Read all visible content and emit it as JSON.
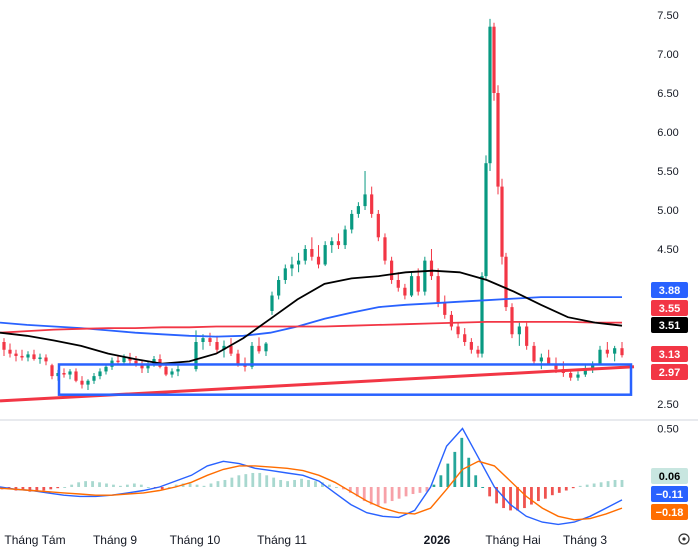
{
  "chart_data": {
    "type": "candlestick",
    "price_axis": {
      "ticks": [
        "7.50",
        "7.00",
        "6.50",
        "6.00",
        "5.50",
        "5.00",
        "4.50",
        "2.50"
      ],
      "tick_values": [
        7.5,
        7.0,
        6.5,
        6.0,
        5.5,
        5.0,
        4.5,
        2.5
      ]
    },
    "price_badges": [
      {
        "text": "3.88",
        "value": 3.88,
        "color": "#2962ff",
        "text_color": "#ffffff"
      },
      {
        "text": "3.55",
        "value": 3.55,
        "color": "#f23645",
        "text_color": "#ffffff"
      },
      {
        "text": "3.51",
        "value": 3.51,
        "color": "#000000",
        "text_color": "#ffffff"
      },
      {
        "text": "3.13",
        "value": 3.13,
        "color": "#f23645",
        "text_color": "#ffffff"
      },
      {
        "text": "2.97",
        "value": 2.97,
        "color": "#f23645",
        "text_color": "#ffffff"
      }
    ],
    "x_labels": [
      "Tháng Tám",
      "Tháng 9",
      "Tháng 10",
      "Tháng 11",
      "2026",
      "Tháng Hai",
      "Tháng 3"
    ],
    "candles_ohlc": [
      [
        3.3,
        3.35,
        3.12,
        3.2
      ],
      [
        3.2,
        3.28,
        3.1,
        3.15
      ],
      [
        3.15,
        3.2,
        3.05,
        3.12
      ],
      [
        3.12,
        3.2,
        3.06,
        3.1
      ],
      [
        3.1,
        3.18,
        3.05,
        3.14
      ],
      [
        3.14,
        3.2,
        3.06,
        3.08
      ],
      [
        3.08,
        3.15,
        3.02,
        3.1
      ],
      [
        3.1,
        3.14,
        3.0,
        3.05
      ],
      [
        3.0,
        3.02,
        2.82,
        2.86
      ],
      [
        2.86,
        2.94,
        2.8,
        2.9
      ],
      [
        2.9,
        2.96,
        2.84,
        2.88
      ],
      [
        2.88,
        2.95,
        2.82,
        2.92
      ],
      [
        2.92,
        2.96,
        2.78,
        2.8
      ],
      [
        2.8,
        2.86,
        2.7,
        2.75
      ],
      [
        2.75,
        2.82,
        2.68,
        2.8
      ],
      [
        2.8,
        2.9,
        2.76,
        2.86
      ],
      [
        2.86,
        2.96,
        2.82,
        2.92
      ],
      [
        2.92,
        3.02,
        2.88,
        2.98
      ],
      [
        2.98,
        3.1,
        2.94,
        3.06
      ],
      [
        3.06,
        3.12,
        3.0,
        3.04
      ],
      [
        3.04,
        3.14,
        3.0,
        3.1
      ],
      [
        3.1,
        3.16,
        3.02,
        3.06
      ],
      [
        3.06,
        3.12,
        2.98,
        3.0
      ],
      [
        3.0,
        3.06,
        2.9,
        2.96
      ],
      [
        2.96,
        3.04,
        2.9,
        3.02
      ],
      [
        3.02,
        3.12,
        2.98,
        3.08
      ],
      [
        3.08,
        3.14,
        2.96,
        2.98
      ],
      [
        2.98,
        3.02,
        2.86,
        2.88
      ],
      [
        2.88,
        2.96,
        2.84,
        2.92
      ],
      [
        2.92,
        3.0,
        2.86,
        2.95
      ],
      [
        2.95,
        3.45,
        2.92,
        3.3
      ],
      [
        3.3,
        3.4,
        3.2,
        3.35
      ],
      [
        3.35,
        3.42,
        3.25,
        3.3
      ],
      [
        3.3,
        3.38,
        3.15,
        3.2
      ],
      [
        3.2,
        3.32,
        3.1,
        3.25
      ],
      [
        3.25,
        3.35,
        3.12,
        3.15
      ],
      [
        3.15,
        3.2,
        2.98,
        3.02
      ],
      [
        3.02,
        3.1,
        2.92,
        2.98
      ],
      [
        2.98,
        3.3,
        2.95,
        3.25
      ],
      [
        3.25,
        3.36,
        3.15,
        3.18
      ],
      [
        3.18,
        3.3,
        3.12,
        3.28
      ],
      [
        3.7,
        3.95,
        3.65,
        3.9
      ],
      [
        3.9,
        4.15,
        3.85,
        4.1
      ],
      [
        4.1,
        4.3,
        4.05,
        4.25
      ],
      [
        4.25,
        4.4,
        4.15,
        4.3
      ],
      [
        4.3,
        4.45,
        4.2,
        4.35
      ],
      [
        4.35,
        4.55,
        4.3,
        4.5
      ],
      [
        4.5,
        4.65,
        4.35,
        4.4
      ],
      [
        4.4,
        4.55,
        4.25,
        4.3
      ],
      [
        4.3,
        4.6,
        4.28,
        4.55
      ],
      [
        4.55,
        4.65,
        4.45,
        4.6
      ],
      [
        4.6,
        4.7,
        4.5,
        4.55
      ],
      [
        4.55,
        4.8,
        4.5,
        4.75
      ],
      [
        4.75,
        5.0,
        4.7,
        4.95
      ],
      [
        4.95,
        5.1,
        4.9,
        5.05
      ],
      [
        5.05,
        5.5,
        5.0,
        5.2
      ],
      [
        5.2,
        5.3,
        4.9,
        4.95
      ],
      [
        4.95,
        5.0,
        4.6,
        4.65
      ],
      [
        4.65,
        4.7,
        4.3,
        4.35
      ],
      [
        4.35,
        4.4,
        4.05,
        4.1
      ],
      [
        4.1,
        4.2,
        3.95,
        4.0
      ],
      [
        4.0,
        4.05,
        3.85,
        3.9
      ],
      [
        3.9,
        4.2,
        3.88,
        4.15
      ],
      [
        4.15,
        4.25,
        3.9,
        3.95
      ],
      [
        3.95,
        4.4,
        3.9,
        4.35
      ],
      [
        4.35,
        4.5,
        4.1,
        4.15
      ],
      [
        4.15,
        4.25,
        3.75,
        3.8
      ],
      [
        3.8,
        3.9,
        3.6,
        3.65
      ],
      [
        3.65,
        3.7,
        3.45,
        3.5
      ],
      [
        3.5,
        3.55,
        3.35,
        3.4
      ],
      [
        3.4,
        3.48,
        3.25,
        3.3
      ],
      [
        3.3,
        3.35,
        3.15,
        3.2
      ],
      [
        3.2,
        3.25,
        3.1,
        3.15
      ],
      [
        3.15,
        4.2,
        3.1,
        4.15
      ],
      [
        4.15,
        5.7,
        4.1,
        5.6
      ],
      [
        5.6,
        7.45,
        5.5,
        7.35
      ],
      [
        7.35,
        7.4,
        6.4,
        6.5
      ],
      [
        6.5,
        6.6,
        5.2,
        5.3
      ],
      [
        5.3,
        5.4,
        4.3,
        4.4
      ],
      [
        4.4,
        4.45,
        3.7,
        3.75
      ],
      [
        3.75,
        3.8,
        3.35,
        3.4
      ],
      [
        3.4,
        3.55,
        3.25,
        3.5
      ],
      [
        3.5,
        3.55,
        3.2,
        3.25
      ],
      [
        3.25,
        3.3,
        3.0,
        3.05
      ],
      [
        3.05,
        3.15,
        2.95,
        3.1
      ],
      [
        3.1,
        3.2,
        3.0,
        3.02
      ],
      [
        3.02,
        3.1,
        2.9,
        2.95
      ],
      [
        2.95,
        3.05,
        2.85,
        2.9
      ],
      [
        2.9,
        2.95,
        2.8,
        2.84
      ],
      [
        2.84,
        2.92,
        2.8,
        2.88
      ],
      [
        2.88,
        3.0,
        2.85,
        2.96
      ],
      [
        2.96,
        3.05,
        2.9,
        3.02
      ],
      [
        3.02,
        3.25,
        3.0,
        3.2
      ],
      [
        3.2,
        3.3,
        3.1,
        3.15
      ],
      [
        3.15,
        3.25,
        3.05,
        3.22
      ],
      [
        3.22,
        3.3,
        3.1,
        3.13
      ]
    ],
    "ma_lines": [
      {
        "color": "#2962ff",
        "values": [
          3.55,
          3.52,
          3.5,
          3.48,
          3.45,
          3.42,
          3.4,
          3.38,
          3.37,
          3.38,
          3.42,
          3.5,
          3.6,
          3.68,
          3.75,
          3.78,
          3.8,
          3.82,
          3.84,
          3.86,
          3.88,
          3.88,
          3.88,
          3.88
        ]
      },
      {
        "color": "#f23645",
        "values": [
          3.42,
          3.44,
          3.46,
          3.47,
          3.48,
          3.48,
          3.49,
          3.49,
          3.5,
          3.5,
          3.5,
          3.5,
          3.5,
          3.51,
          3.52,
          3.53,
          3.54,
          3.55,
          3.56,
          3.56,
          3.56,
          3.56,
          3.55,
          3.55
        ]
      },
      {
        "color": "#000000",
        "values": [
          3.42,
          3.38,
          3.32,
          3.25,
          3.15,
          3.08,
          3.02,
          3.05,
          3.15,
          3.35,
          3.6,
          3.85,
          4.05,
          4.12,
          4.15,
          4.2,
          4.22,
          4.2,
          4.1,
          3.95,
          3.78,
          3.62,
          3.55,
          3.51
        ]
      }
    ],
    "trendline": {
      "from": 2.54,
      "to": 2.98,
      "color": "#f23645"
    },
    "support_box": {
      "low": 2.62,
      "high": 3.01,
      "color": "#2962ff"
    },
    "macd": {
      "ticks": [
        "0.50"
      ],
      "badges": [
        {
          "text": "0.06",
          "value": 0.06,
          "color": "#c8e6e0",
          "text_color": "#000000"
        },
        {
          "text": "−0.11",
          "value": -0.11,
          "color": "#2962ff",
          "text_color": "#ffffff"
        },
        {
          "text": "−0.18",
          "value": -0.18,
          "color": "#ff6d00",
          "text_color": "#ffffff"
        }
      ],
      "histogram": [
        -0.02,
        -0.02,
        -0.03,
        -0.03,
        -0.04,
        -0.04,
        -0.03,
        -0.02,
        -0.01,
        0.0,
        0.02,
        0.04,
        0.05,
        0.05,
        0.04,
        0.03,
        0.02,
        0.01,
        0.02,
        0.03,
        0.02,
        0.0,
        -0.01,
        -0.02,
        0.0,
        0.02,
        0.03,
        0.03,
        0.02,
        0.01,
        0.03,
        0.05,
        0.06,
        0.08,
        0.1,
        0.11,
        0.12,
        0.12,
        0.1,
        0.08,
        0.06,
        0.05,
        0.06,
        0.07,
        0.06,
        0.05,
        0.04,
        0.02,
        0.0,
        -0.02,
        -0.05,
        -0.08,
        -0.12,
        -0.15,
        -0.16,
        -0.14,
        -0.12,
        -0.1,
        -0.08,
        -0.06,
        -0.05,
        -0.04,
        0.02,
        0.1,
        0.2,
        0.3,
        0.42,
        0.25,
        0.1,
        0.0,
        -0.08,
        -0.14,
        -0.18,
        -0.2,
        -0.2,
        -0.18,
        -0.15,
        -0.12,
        -0.1,
        -0.07,
        -0.05,
        -0.03,
        -0.01,
        0.01,
        0.02,
        0.03,
        0.04,
        0.05,
        0.06,
        0.06
      ],
      "macd_line": [
        0.0,
        -0.02,
        -0.03,
        -0.05,
        -0.07,
        -0.08,
        -0.08,
        -0.07,
        -0.05,
        -0.03,
        0.0,
        0.05,
        0.1,
        0.18,
        0.22,
        0.2,
        0.16,
        0.14,
        0.12,
        0.1,
        0.05,
        -0.05,
        -0.15,
        -0.22,
        -0.25,
        -0.26,
        -0.2,
        0.0,
        0.35,
        0.5,
        0.25,
        0.0,
        -0.15,
        -0.25,
        -0.3,
        -0.32,
        -0.3,
        -0.25,
        -0.18,
        -0.11
      ],
      "signal_line": [
        -0.01,
        -0.02,
        -0.03,
        -0.04,
        -0.05,
        -0.06,
        -0.07,
        -0.07,
        -0.06,
        -0.05,
        -0.03,
        0.0,
        0.04,
        0.1,
        0.15,
        0.18,
        0.18,
        0.17,
        0.16,
        0.14,
        0.1,
        0.04,
        -0.04,
        -0.12,
        -0.18,
        -0.22,
        -0.23,
        -0.18,
        -0.02,
        0.15,
        0.22,
        0.18,
        0.05,
        -0.08,
        -0.18,
        -0.25,
        -0.28,
        -0.27,
        -0.23,
        -0.18
      ],
      "range": [
        -0.4,
        0.55
      ]
    }
  }
}
